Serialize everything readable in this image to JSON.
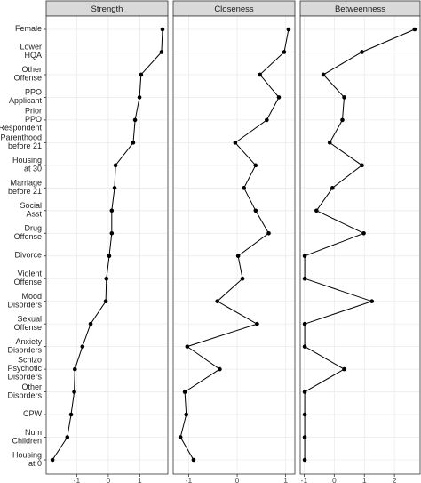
{
  "chart_data": {
    "type": "line",
    "categories": [
      [
        "Female"
      ],
      [
        "Lower",
        "HQA"
      ],
      [
        "Other",
        "Offense"
      ],
      [
        "PPO",
        "Applicant"
      ],
      [
        "Prior",
        "PPO",
        "Respondent"
      ],
      [
        "Parenthood",
        "before 21"
      ],
      [
        "Housing",
        "at 30"
      ],
      [
        "Marriage",
        "before 21"
      ],
      [
        "Social",
        "Asst"
      ],
      [
        "Drug",
        "Offense"
      ],
      [
        "Divorce"
      ],
      [
        "Violent",
        "Offense"
      ],
      [
        "Mood",
        "Disorders"
      ],
      [
        "Sexual",
        "Offense"
      ],
      [
        "Anxiety",
        "Disorders"
      ],
      [
        "Schizo",
        "Psychotic",
        "Disorders"
      ],
      [
        "Other",
        "Disorders"
      ],
      [
        "CPW"
      ],
      [
        "Num",
        "Children"
      ],
      [
        "Housing",
        "at 0"
      ]
    ],
    "color": "#000000",
    "grid": true,
    "facets": [
      {
        "title": "Strength",
        "xlim": [
          -1.97,
          1.89
        ],
        "xticks": [
          -1,
          0,
          1
        ],
        "values": [
          1.72,
          1.69,
          1.04,
          0.99,
          0.85,
          0.79,
          0.23,
          0.2,
          0.11,
          0.11,
          0.03,
          -0.06,
          -0.08,
          -0.56,
          -0.82,
          -1.06,
          -1.08,
          -1.18,
          -1.3,
          -1.77
        ]
      },
      {
        "title": "Closeness",
        "xlim": [
          -1.32,
          1.19
        ],
        "xticks": [
          -1,
          0,
          1
        ],
        "values": [
          1.06,
          0.97,
          0.47,
          0.86,
          0.61,
          -0.04,
          0.38,
          0.14,
          0.38,
          0.65,
          0.02,
          0.11,
          -0.41,
          0.41,
          -1.03,
          -0.36,
          -1.08,
          -1.05,
          -1.17,
          -0.9
        ]
      },
      {
        "title": "Betweenness",
        "xlim": [
          -1.13,
          2.85
        ],
        "xticks": [
          -1,
          0,
          1,
          2
        ],
        "values": [
          2.67,
          0.92,
          -0.36,
          0.33,
          0.27,
          -0.15,
          0.92,
          -0.06,
          -0.59,
          0.98,
          -0.98,
          -0.98,
          1.25,
          -0.98,
          -0.98,
          0.33,
          -0.98,
          -0.98,
          -0.98,
          -0.98
        ]
      }
    ]
  }
}
